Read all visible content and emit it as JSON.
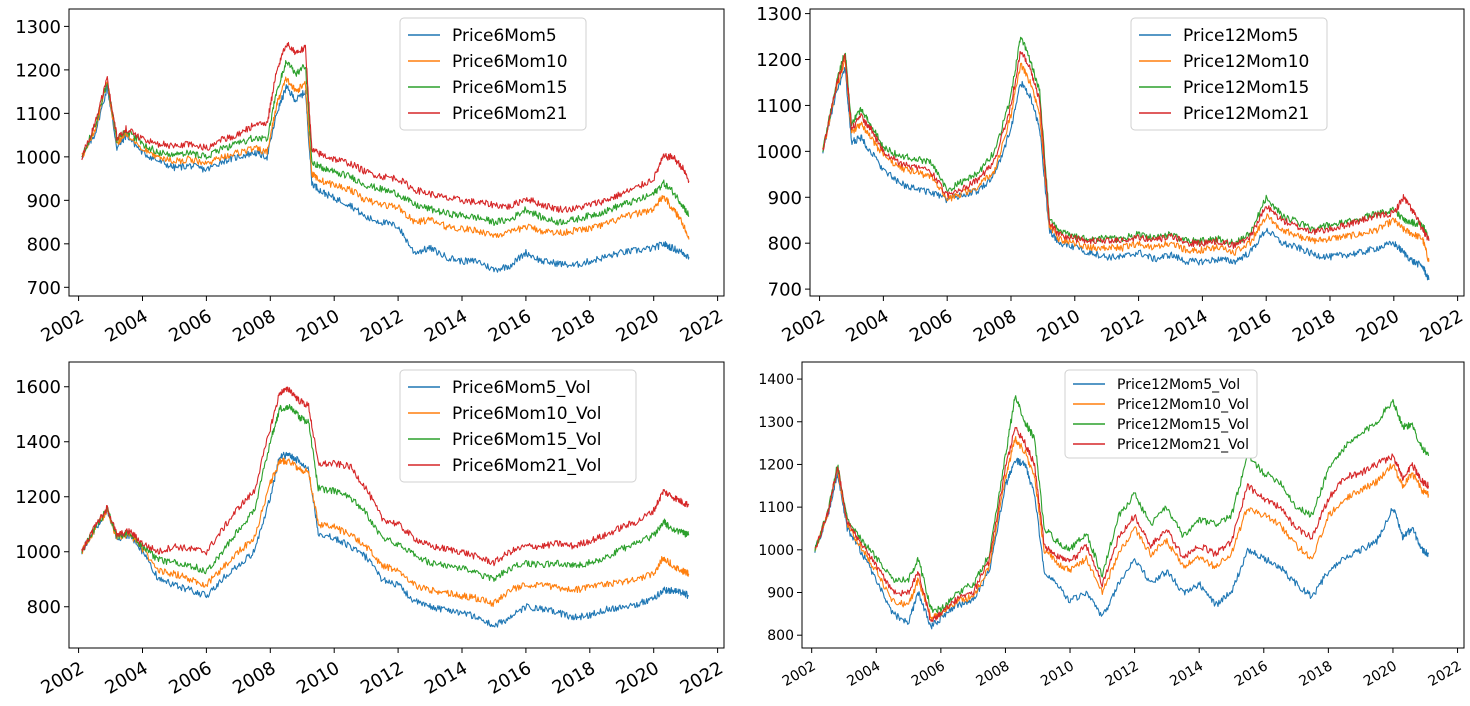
{
  "colors": {
    "blue": "#1f77b4",
    "orange": "#ff7f0e",
    "green": "#2ca02c",
    "red": "#d62728"
  },
  "chart_data": [
    {
      "type": "line",
      "title": "",
      "xlabel": "",
      "ylabel": "",
      "xlim": [
        2001.7,
        2022.2
      ],
      "ylim": [
        680,
        1340
      ],
      "yticks": [
        700,
        800,
        900,
        1000,
        1100,
        1200,
        1300
      ],
      "xticks": [
        "2002",
        "2004",
        "2006",
        "2008",
        "2010",
        "2012",
        "2014",
        "2016",
        "2018",
        "2020",
        "2022"
      ],
      "grid": false,
      "legend_position": "top-center",
      "x": [
        2002.1,
        2002.5,
        2002.9,
        2003.2,
        2003.5,
        2004.0,
        2004.5,
        2005.0,
        2005.5,
        2006.0,
        2006.5,
        2007.0,
        2007.5,
        2007.9,
        2008.2,
        2008.5,
        2008.8,
        2009.1,
        2009.3,
        2009.6,
        2010.0,
        2010.5,
        2011.0,
        2011.5,
        2012.0,
        2012.5,
        2013.0,
        2013.5,
        2014.0,
        2014.5,
        2015.0,
        2015.5,
        2016.0,
        2016.5,
        2017.0,
        2017.5,
        2018.0,
        2018.5,
        2019.0,
        2019.5,
        2020.0,
        2020.3,
        2020.6,
        2020.9,
        2021.1
      ],
      "series": [
        {
          "name": "Price6Mom5",
          "color": "#1f77b4",
          "values": [
            1000,
            1050,
            1160,
            1020,
            1050,
            1010,
            990,
            975,
            980,
            970,
            990,
            1000,
            1010,
            1000,
            1100,
            1160,
            1130,
            1150,
            940,
            920,
            905,
            890,
            860,
            850,
            840,
            780,
            790,
            770,
            760,
            760,
            740,
            750,
            780,
            760,
            755,
            750,
            760,
            770,
            780,
            785,
            790,
            800,
            790,
            780,
            770
          ]
        },
        {
          "name": "Price6Mom10",
          "color": "#ff7f0e",
          "values": [
            1000,
            1060,
            1170,
            1030,
            1055,
            1020,
            1000,
            990,
            995,
            985,
            1000,
            1010,
            1020,
            1010,
            1120,
            1180,
            1150,
            1170,
            960,
            945,
            935,
            925,
            900,
            890,
            885,
            850,
            855,
            840,
            835,
            830,
            820,
            825,
            840,
            830,
            825,
            830,
            835,
            845,
            860,
            870,
            880,
            910,
            880,
            850,
            810
          ]
        },
        {
          "name": "Price6Mom15",
          "color": "#2ca02c",
          "values": [
            1000,
            1070,
            1175,
            1040,
            1060,
            1030,
            1010,
            1005,
            1010,
            1000,
            1020,
            1030,
            1045,
            1040,
            1150,
            1220,
            1190,
            1210,
            990,
            975,
            965,
            955,
            935,
            925,
            915,
            890,
            880,
            870,
            865,
            860,
            850,
            855,
            880,
            860,
            850,
            855,
            865,
            875,
            890,
            900,
            915,
            940,
            920,
            890,
            865
          ]
        },
        {
          "name": "Price6Mom21",
          "color": "#d62728",
          "values": [
            1000,
            1075,
            1180,
            1045,
            1065,
            1040,
            1030,
            1025,
            1030,
            1020,
            1040,
            1050,
            1075,
            1075,
            1200,
            1260,
            1240,
            1250,
            1015,
            1005,
            995,
            985,
            965,
            955,
            950,
            925,
            915,
            905,
            900,
            895,
            890,
            885,
            905,
            890,
            880,
            880,
            890,
            900,
            915,
            930,
            950,
            1000,
            1000,
            975,
            945
          ]
        }
      ]
    },
    {
      "type": "line",
      "title": "",
      "xlabel": "",
      "ylabel": "",
      "xlim": [
        2001.7,
        2022.2
      ],
      "ylim": [
        685,
        1310
      ],
      "yticks": [
        700,
        800,
        900,
        1000,
        1100,
        1200,
        1300
      ],
      "xticks": [
        "2002",
        "2004",
        "2006",
        "2008",
        "2010",
        "2012",
        "2014",
        "2016",
        "2018",
        "2020",
        "2022"
      ],
      "grid": false,
      "legend_position": "top-center",
      "x": [
        2002.1,
        2002.5,
        2002.8,
        2003.0,
        2003.3,
        2003.6,
        2004.0,
        2004.5,
        2005.0,
        2005.5,
        2006.0,
        2006.5,
        2007.0,
        2007.5,
        2008.0,
        2008.3,
        2008.6,
        2008.9,
        2009.2,
        2009.5,
        2010.0,
        2010.5,
        2011.0,
        2011.5,
        2012.0,
        2012.5,
        2013.0,
        2013.5,
        2014.0,
        2014.5,
        2015.0,
        2015.5,
        2016.0,
        2016.5,
        2017.0,
        2017.5,
        2018.0,
        2018.5,
        2019.0,
        2019.5,
        2020.0,
        2020.3,
        2020.6,
        2020.9,
        2021.1
      ],
      "series": [
        {
          "name": "Price12Mom5",
          "color": "#1f77b4",
          "values": [
            1000,
            1120,
            1180,
            1020,
            1030,
            1000,
            960,
            930,
            920,
            910,
            895,
            905,
            915,
            950,
            1050,
            1150,
            1120,
            1050,
            830,
            800,
            790,
            780,
            770,
            770,
            780,
            765,
            775,
            760,
            760,
            765,
            760,
            780,
            830,
            800,
            790,
            775,
            770,
            775,
            780,
            790,
            800,
            780,
            760,
            750,
            720
          ]
        },
        {
          "name": "Price12Mom10",
          "color": "#ff7f0e",
          "values": [
            1000,
            1130,
            1200,
            1040,
            1060,
            1030,
            990,
            965,
            955,
            945,
            895,
            910,
            925,
            960,
            1080,
            1190,
            1150,
            1080,
            840,
            810,
            800,
            790,
            790,
            790,
            800,
            790,
            800,
            785,
            785,
            790,
            780,
            800,
            860,
            830,
            815,
            805,
            810,
            815,
            820,
            830,
            850,
            830,
            820,
            810,
            760
          ]
        },
        {
          "name": "Price12Mom15",
          "color": "#2ca02c",
          "values": [
            1000,
            1140,
            1220,
            1060,
            1090,
            1060,
            1010,
            990,
            985,
            975,
            915,
            935,
            955,
            1000,
            1120,
            1250,
            1200,
            1130,
            855,
            825,
            815,
            810,
            810,
            810,
            820,
            810,
            820,
            805,
            805,
            810,
            800,
            820,
            900,
            860,
            845,
            830,
            840,
            845,
            855,
            865,
            875,
            850,
            845,
            840,
            810
          ]
        },
        {
          "name": "Price12Mom21",
          "color": "#d62728",
          "values": [
            1000,
            1135,
            1210,
            1050,
            1075,
            1050,
            1000,
            975,
            965,
            955,
            905,
            920,
            940,
            980,
            1100,
            1220,
            1180,
            1110,
            845,
            820,
            810,
            805,
            805,
            805,
            815,
            805,
            815,
            800,
            800,
            805,
            795,
            815,
            880,
            850,
            835,
            825,
            830,
            840,
            850,
            860,
            865,
            900,
            870,
            830,
            805
          ]
        }
      ]
    },
    {
      "type": "line",
      "title": "",
      "xlabel": "",
      "ylabel": "",
      "xlim": [
        2001.7,
        2022.2
      ],
      "ylim": [
        650,
        1690
      ],
      "yticks": [
        800,
        1000,
        1200,
        1400,
        1600
      ],
      "xticks": [
        "2002",
        "2004",
        "2006",
        "2008",
        "2010",
        "2012",
        "2014",
        "2016",
        "2018",
        "2020",
        "2022"
      ],
      "grid": false,
      "legend_position": "top-right",
      "x": [
        2002.1,
        2002.5,
        2002.9,
        2003.2,
        2003.6,
        2004.0,
        2004.5,
        2005.0,
        2005.5,
        2006.0,
        2006.5,
        2007.0,
        2007.5,
        2008.0,
        2008.3,
        2008.6,
        2008.9,
        2009.2,
        2009.5,
        2010.0,
        2010.5,
        2011.0,
        2011.5,
        2012.0,
        2012.5,
        2013.0,
        2013.5,
        2014.0,
        2014.5,
        2015.0,
        2015.5,
        2016.0,
        2016.5,
        2017.0,
        2017.5,
        2018.0,
        2018.5,
        2019.0,
        2019.5,
        2020.0,
        2020.3,
        2020.6,
        2020.9,
        2021.1
      ],
      "series": [
        {
          "name": "Price6Mom5_Vol",
          "color": "#1f77b4",
          "values": [
            1000,
            1080,
            1150,
            1050,
            1060,
            1000,
            900,
            880,
            860,
            840,
            900,
            950,
            1000,
            1200,
            1350,
            1350,
            1330,
            1300,
            1070,
            1050,
            1020,
            980,
            900,
            880,
            820,
            800,
            790,
            780,
            760,
            730,
            760,
            800,
            790,
            780,
            760,
            770,
            790,
            800,
            810,
            830,
            860,
            860,
            850,
            840
          ]
        },
        {
          "name": "Price6Mom10_Vol",
          "color": "#ff7f0e",
          "values": [
            1000,
            1080,
            1150,
            1050,
            1065,
            1010,
            930,
            920,
            900,
            880,
            940,
            1000,
            1050,
            1250,
            1330,
            1330,
            1300,
            1290,
            1100,
            1090,
            1060,
            1020,
            950,
            930,
            880,
            860,
            850,
            840,
            830,
            810,
            860,
            880,
            880,
            870,
            860,
            870,
            880,
            890,
            900,
            920,
            980,
            950,
            930,
            920
          ]
        },
        {
          "name": "Price6Mom15_Vol",
          "color": "#2ca02c",
          "values": [
            1000,
            1085,
            1155,
            1055,
            1070,
            1020,
            970,
            960,
            950,
            930,
            1000,
            1080,
            1150,
            1400,
            1520,
            1530,
            1490,
            1470,
            1230,
            1220,
            1200,
            1140,
            1050,
            1030,
            990,
            960,
            950,
            940,
            920,
            900,
            940,
            960,
            950,
            960,
            950,
            960,
            980,
            1010,
            1030,
            1060,
            1110,
            1080,
            1070,
            1060
          ]
        },
        {
          "name": "Price6Mom21_Vol",
          "color": "#d62728",
          "values": [
            1000,
            1090,
            1160,
            1060,
            1075,
            1030,
            1000,
            1020,
            1010,
            1000,
            1080,
            1160,
            1220,
            1450,
            1580,
            1590,
            1550,
            1530,
            1320,
            1320,
            1310,
            1230,
            1120,
            1100,
            1050,
            1020,
            1010,
            1000,
            980,
            960,
            1000,
            1020,
            1020,
            1030,
            1020,
            1040,
            1060,
            1090,
            1110,
            1150,
            1220,
            1200,
            1180,
            1170
          ]
        }
      ]
    },
    {
      "type": "line",
      "title": "",
      "xlabel": "",
      "ylabel": "",
      "xlim": [
        2001.7,
        2022.2
      ],
      "ylim": [
        770,
        1440
      ],
      "yticks": [
        800,
        900,
        1000,
        1100,
        1200,
        1300,
        1400
      ],
      "xticks": [
        "2002",
        "2004",
        "2006",
        "2008",
        "2010",
        "2012",
        "2014",
        "2016",
        "2018",
        "2020",
        "2022"
      ],
      "grid": false,
      "legend_position": "top-center",
      "x": [
        2002.1,
        2002.5,
        2002.8,
        2003.1,
        2003.5,
        2004.0,
        2004.5,
        2005.0,
        2005.3,
        2005.7,
        2006.0,
        2006.5,
        2007.0,
        2007.5,
        2008.0,
        2008.3,
        2008.6,
        2008.9,
        2009.2,
        2009.6,
        2010.0,
        2010.5,
        2011.0,
        2011.5,
        2012.0,
        2012.5,
        2013.0,
        2013.5,
        2014.0,
        2014.5,
        2015.0,
        2015.5,
        2016.0,
        2016.5,
        2017.0,
        2017.5,
        2018.0,
        2018.5,
        2019.0,
        2019.5,
        2020.0,
        2020.3,
        2020.6,
        2020.9,
        2021.1
      ],
      "series": [
        {
          "name": "Price12Mom5_Vol",
          "color": "#1f77b4",
          "values": [
            1000,
            1080,
            1180,
            1050,
            1000,
            930,
            850,
            830,
            900,
            820,
            840,
            870,
            880,
            950,
            1150,
            1210,
            1200,
            1130,
            950,
            920,
            880,
            900,
            840,
            920,
            980,
            920,
            950,
            900,
            920,
            870,
            900,
            1000,
            980,
            960,
            920,
            890,
            950,
            980,
            1000,
            1020,
            1100,
            1030,
            1050,
            1000,
            990
          ]
        },
        {
          "name": "Price12Mom10_Vol",
          "color": "#ff7f0e",
          "values": [
            1000,
            1085,
            1190,
            1060,
            1010,
            950,
            880,
            870,
            930,
            840,
            850,
            880,
            890,
            960,
            1170,
            1260,
            1230,
            1170,
            1000,
            970,
            950,
            980,
            900,
            990,
            1050,
            990,
            1020,
            960,
            980,
            960,
            990,
            1100,
            1080,
            1060,
            1010,
            980,
            1080,
            1120,
            1140,
            1160,
            1200,
            1150,
            1180,
            1140,
            1130
          ]
        },
        {
          "name": "Price12Mom15_Vol",
          "color": "#2ca02c",
          "values": [
            1000,
            1090,
            1200,
            1070,
            1030,
            980,
            930,
            930,
            980,
            860,
            860,
            900,
            920,
            990,
            1220,
            1360,
            1300,
            1260,
            1050,
            1020,
            1000,
            1040,
            940,
            1080,
            1130,
            1060,
            1100,
            1030,
            1070,
            1060,
            1080,
            1220,
            1180,
            1160,
            1100,
            1080,
            1190,
            1240,
            1270,
            1300,
            1350,
            1290,
            1290,
            1240,
            1220
          ]
        },
        {
          "name": "Price12Mom21_Vol",
          "color": "#d62728",
          "values": [
            1000,
            1085,
            1195,
            1065,
            1020,
            965,
            900,
            900,
            950,
            830,
            855,
            885,
            900,
            975,
            1190,
            1290,
            1250,
            1200,
            1010,
            985,
            970,
            1010,
            920,
            1030,
            1080,
            1010,
            1050,
            980,
            1010,
            990,
            1020,
            1150,
            1120,
            1100,
            1050,
            1030,
            1120,
            1170,
            1180,
            1200,
            1220,
            1170,
            1200,
            1160,
            1150
          ]
        }
      ]
    }
  ]
}
